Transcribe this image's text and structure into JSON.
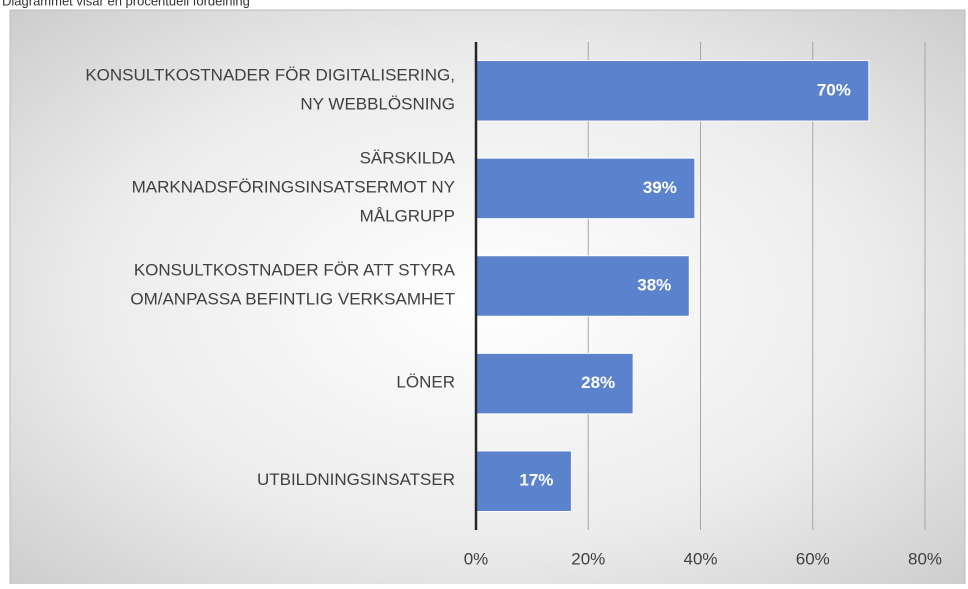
{
  "caption": "Diagrammet visar en procentuell fördelning",
  "chart_data": {
    "type": "bar",
    "orientation": "horizontal",
    "categories": [
      [
        "KONSULTKOSTNADER FÖR DIGITALISERING,",
        "NY WEBBLÖSNING"
      ],
      [
        "SÄRSKILDA",
        "MARKNADSFÖRINGSINSATSERMOT NY",
        "MÅLGRUPP"
      ],
      [
        "KONSULTKOSTNADER FÖR ATT STYRA",
        "OM/ANPASSA BEFINTLIG VERKSAMHET"
      ],
      [
        "LÖNER"
      ],
      [
        "UTBILDNINGSINSATSER"
      ]
    ],
    "values": [
      70,
      39,
      38,
      28,
      17
    ],
    "value_labels": [
      "70%",
      "39%",
      "38%",
      "28%",
      "17%"
    ],
    "color": "#5b82cc",
    "xlim": [
      0,
      80
    ],
    "xticks": [
      {
        "value": 0,
        "label": "0%"
      },
      {
        "value": 20,
        "label": "20%"
      },
      {
        "value": 40,
        "label": "40%"
      },
      {
        "value": 60,
        "label": "60%"
      },
      {
        "value": 80,
        "label": "80%"
      }
    ],
    "grid": true
  }
}
